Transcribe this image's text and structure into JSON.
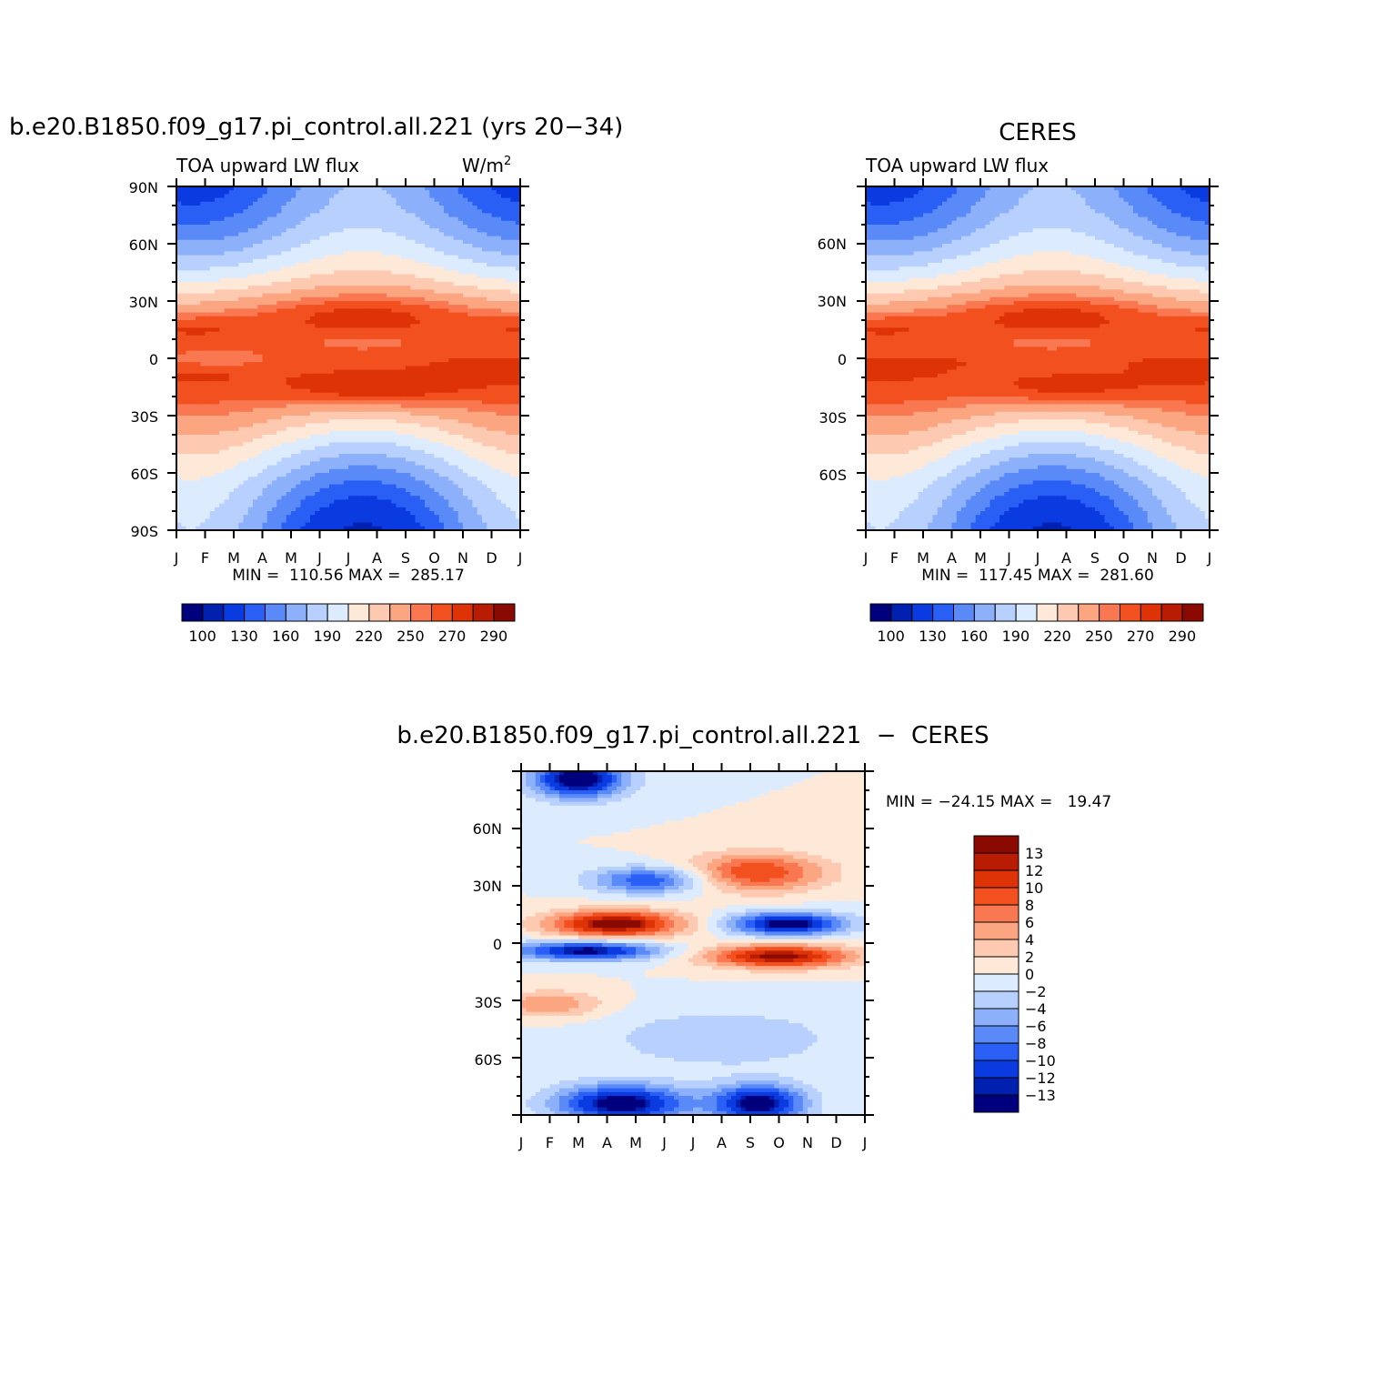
{
  "chart_data": [
    {
      "type": "heatmap",
      "title": "b.e20.B1850.f09_g17.pi_control.all.221 (yrs 20−34)",
      "subtitle_left": "TOA upward LW flux",
      "subtitle_right": "W/m",
      "subtitle_right_sup": "2",
      "x_ticks": [
        "J",
        "F",
        "M",
        "A",
        "M",
        "J",
        "J",
        "A",
        "S",
        "O",
        "N",
        "D",
        "J"
      ],
      "y_ticks": [
        "90N",
        "60N",
        "30N",
        "0",
        "30S",
        "60S",
        "90S"
      ],
      "ylim": [
        -90,
        90
      ],
      "min_max": "MIN =  110.56 MAX =  285.17",
      "colorbar_labels": [
        "100",
        "130",
        "160",
        "190",
        "220",
        "250",
        "270",
        "290"
      ],
      "model": "model"
    },
    {
      "type": "heatmap",
      "title": "CERES",
      "subtitle_left": "TOA upward LW flux",
      "x_ticks": [
        "J",
        "F",
        "M",
        "A",
        "M",
        "J",
        "J",
        "A",
        "S",
        "O",
        "N",
        "D",
        "J"
      ],
      "y_ticks": [
        "60N",
        "30N",
        "0",
        "30S",
        "60S"
      ],
      "ylim": [
        -90,
        90
      ],
      "min_max": "MIN =  117.45 MAX =  281.60",
      "colorbar_labels": [
        "100",
        "130",
        "160",
        "190",
        "220",
        "250",
        "270",
        "290"
      ],
      "model": "obs"
    },
    {
      "type": "heatmap",
      "title": "b.e20.B1850.f09_g17.pi_control.all.221  −  CERES",
      "x_ticks": [
        "J",
        "F",
        "M",
        "A",
        "M",
        "J",
        "J",
        "A",
        "S",
        "O",
        "N",
        "D",
        "J"
      ],
      "y_ticks": [
        "60N",
        "30N",
        "0",
        "30S",
        "60S"
      ],
      "ylim": [
        -90,
        90
      ],
      "min_max": "MIN = −24.15 MAX =   19.47",
      "colorbar_labels": [
        "13",
        "12",
        "10",
        "8",
        "6",
        "4",
        "2",
        "0",
        "−2",
        "−4",
        "−6",
        "−8",
        "−10",
        "−12",
        "−13"
      ],
      "model": "diff"
    }
  ],
  "colors": {
    "flux_scale": [
      "#00007f",
      "#0020b0",
      "#0a3be0",
      "#2a5ff5",
      "#5a8af8",
      "#8db0fb",
      "#b8d0fd",
      "#dcebfe",
      "#fee9d9",
      "#fdc9b0",
      "#fba581",
      "#f97851",
      "#f2501f",
      "#de3307",
      "#b81d04",
      "#8a0a02"
    ],
    "diff_scale": [
      "#8a0a02",
      "#b81d04",
      "#de3307",
      "#f2501f",
      "#f97851",
      "#fba581",
      "#fdc9b0",
      "#fee9d9",
      "#dcebfe",
      "#b8d0fd",
      "#8db0fb",
      "#5a8af8",
      "#2a5ff5",
      "#0a3be0",
      "#0020b0",
      "#00007f"
    ]
  }
}
